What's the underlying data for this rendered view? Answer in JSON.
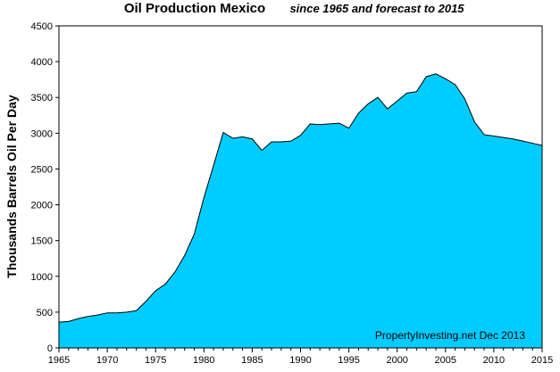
{
  "chart_data": {
    "type": "area",
    "title": "Oil Production  Mexico",
    "subtitle": "since 1965 and forecast to 2015",
    "ylabel": "Thousands Barrels Oil Per Day",
    "xlabel": "",
    "credit": "PropertyInvesting.net  Dec 2013",
    "xlim": [
      1965,
      2015
    ],
    "ylim": [
      0,
      4500
    ],
    "x_ticks": [
      1965,
      1970,
      1975,
      1980,
      1985,
      1990,
      1995,
      2000,
      2005,
      2010,
      2015
    ],
    "y_ticks": [
      0,
      500,
      1000,
      1500,
      2000,
      2500,
      3000,
      3500,
      4000,
      4500
    ],
    "grid": false,
    "fill_color": "#00ccff",
    "line_color": "#000000",
    "x": [
      1965,
      1966,
      1967,
      1968,
      1969,
      1970,
      1971,
      1972,
      1973,
      1974,
      1975,
      1976,
      1977,
      1978,
      1979,
      1980,
      1981,
      1982,
      1983,
      1984,
      1985,
      1986,
      1987,
      1988,
      1989,
      1990,
      1991,
      1992,
      1993,
      1994,
      1995,
      1996,
      1997,
      1998,
      1999,
      2000,
      2001,
      2002,
      2003,
      2004,
      2005,
      2006,
      2007,
      2008,
      2009,
      2010,
      2011,
      2012,
      2013,
      2014,
      2015
    ],
    "values": [
      360,
      370,
      410,
      440,
      460,
      490,
      490,
      500,
      520,
      650,
      800,
      890,
      1060,
      1290,
      1590,
      2100,
      2550,
      3010,
      2930,
      2950,
      2920,
      2760,
      2880,
      2880,
      2890,
      2970,
      3130,
      3120,
      3130,
      3140,
      3070,
      3280,
      3410,
      3500,
      3340,
      3450,
      3560,
      3580,
      3790,
      3830,
      3760,
      3680,
      3480,
      3160,
      2980,
      2960,
      2940,
      2920,
      2890,
      2860,
      2830
    ]
  }
}
